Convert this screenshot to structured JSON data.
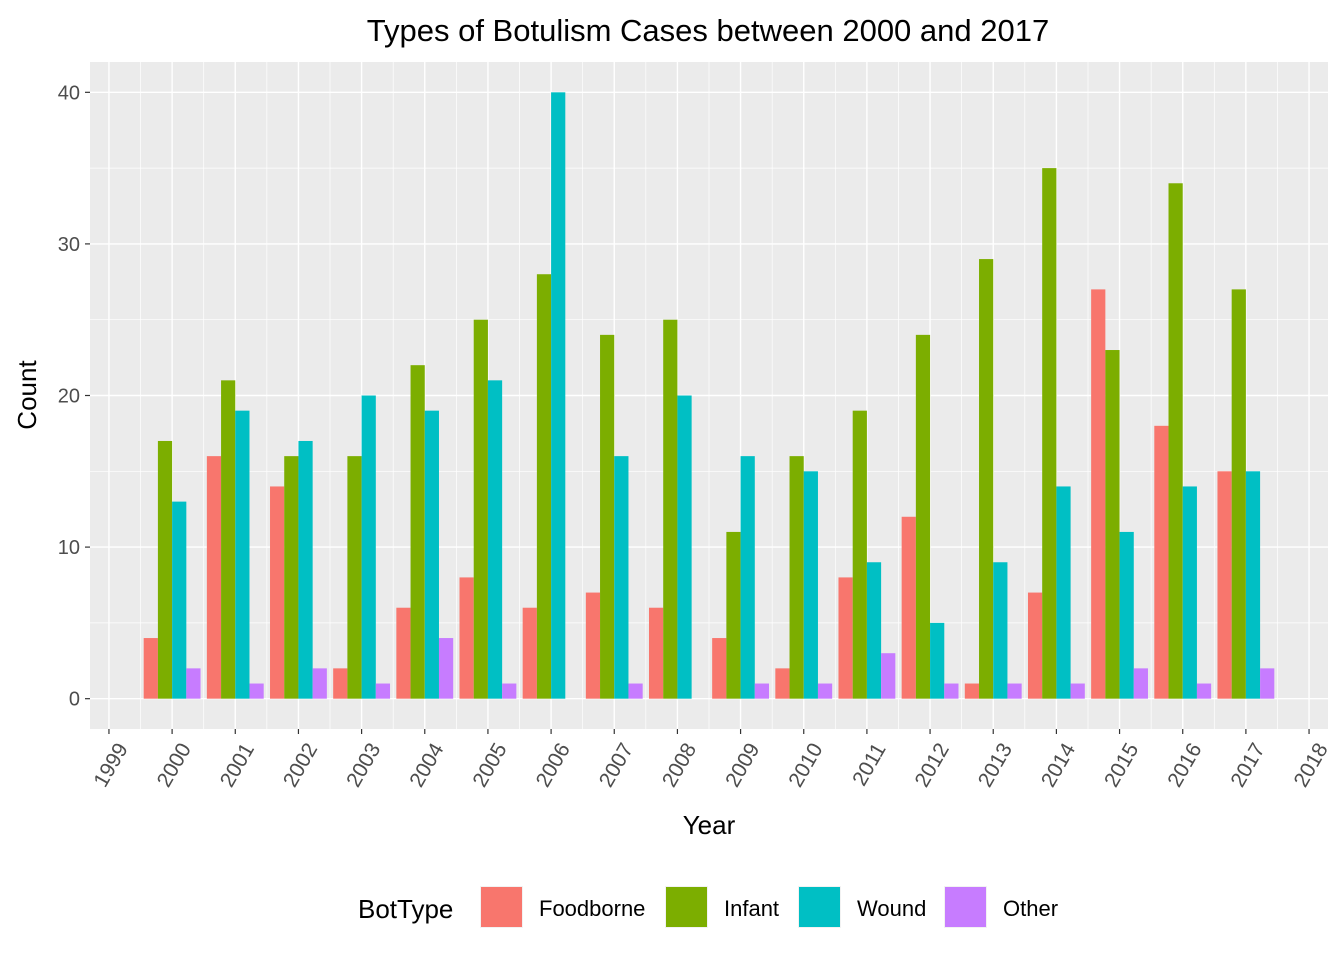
{
  "chart_data": {
    "type": "bar",
    "title": "Types of Botulism Cases between 2000 and 2017",
    "xlabel": "Year",
    "ylabel": "Count",
    "x_ticks": [
      "1999",
      "2000",
      "2001",
      "2002",
      "2003",
      "2004",
      "2005",
      "2006",
      "2007",
      "2008",
      "2009",
      "2010",
      "2011",
      "2012",
      "2013",
      "2014",
      "2015",
      "2016",
      "2017",
      "2018"
    ],
    "y_ticks": [
      "0",
      "10",
      "20",
      "30",
      "40"
    ],
    "ylim": [
      -2,
      42
    ],
    "xlim": [
      1998.7,
      2018.3
    ],
    "categories": [
      "2000",
      "2001",
      "2002",
      "2003",
      "2004",
      "2005",
      "2006",
      "2007",
      "2008",
      "2009",
      "2010",
      "2011",
      "2012",
      "2013",
      "2014",
      "2015",
      "2016",
      "2017"
    ],
    "series": [
      {
        "name": "Foodborne",
        "color": "#F8766D",
        "values": [
          4,
          16,
          14,
          2,
          6,
          8,
          6,
          7,
          6,
          4,
          2,
          8,
          12,
          1,
          7,
          27,
          18,
          15
        ]
      },
      {
        "name": "Infant",
        "color": "#7CAE00",
        "values": [
          17,
          21,
          16,
          16,
          22,
          25,
          28,
          24,
          25,
          11,
          16,
          19,
          24,
          29,
          35,
          23,
          34,
          27
        ]
      },
      {
        "name": "Wound",
        "color": "#00BFC4",
        "values": [
          13,
          19,
          17,
          20,
          19,
          21,
          40,
          16,
          20,
          16,
          15,
          9,
          5,
          9,
          14,
          11,
          14,
          15
        ]
      },
      {
        "name": "Other",
        "color": "#C77CFF",
        "values": [
          2,
          1,
          2,
          1,
          4,
          1,
          null,
          1,
          null,
          1,
          1,
          3,
          1,
          1,
          1,
          2,
          1,
          2
        ]
      }
    ],
    "legend_title": "BotType",
    "legend_position": "bottom",
    "grid": true,
    "panel_background": "#EBEBEB"
  }
}
